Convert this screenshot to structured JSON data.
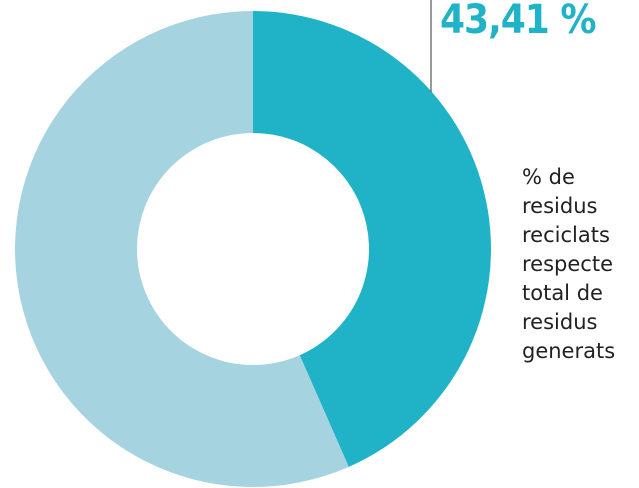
{
  "colors": {
    "highlight": "#20b3c7",
    "remainder": "#a5d4e0",
    "leader_line": "#555555"
  },
  "chart_data": {
    "type": "pie",
    "variant": "donut",
    "slices": [
      {
        "value": 43.41,
        "color": "#20b3c7"
      },
      {
        "value": 56.59,
        "color": "#a5d4e0"
      }
    ],
    "annotation": "43,41 %",
    "description": "% de\nresidus\nreciclats\nrespecte\ntotal de\nresidus\ngenerats"
  }
}
